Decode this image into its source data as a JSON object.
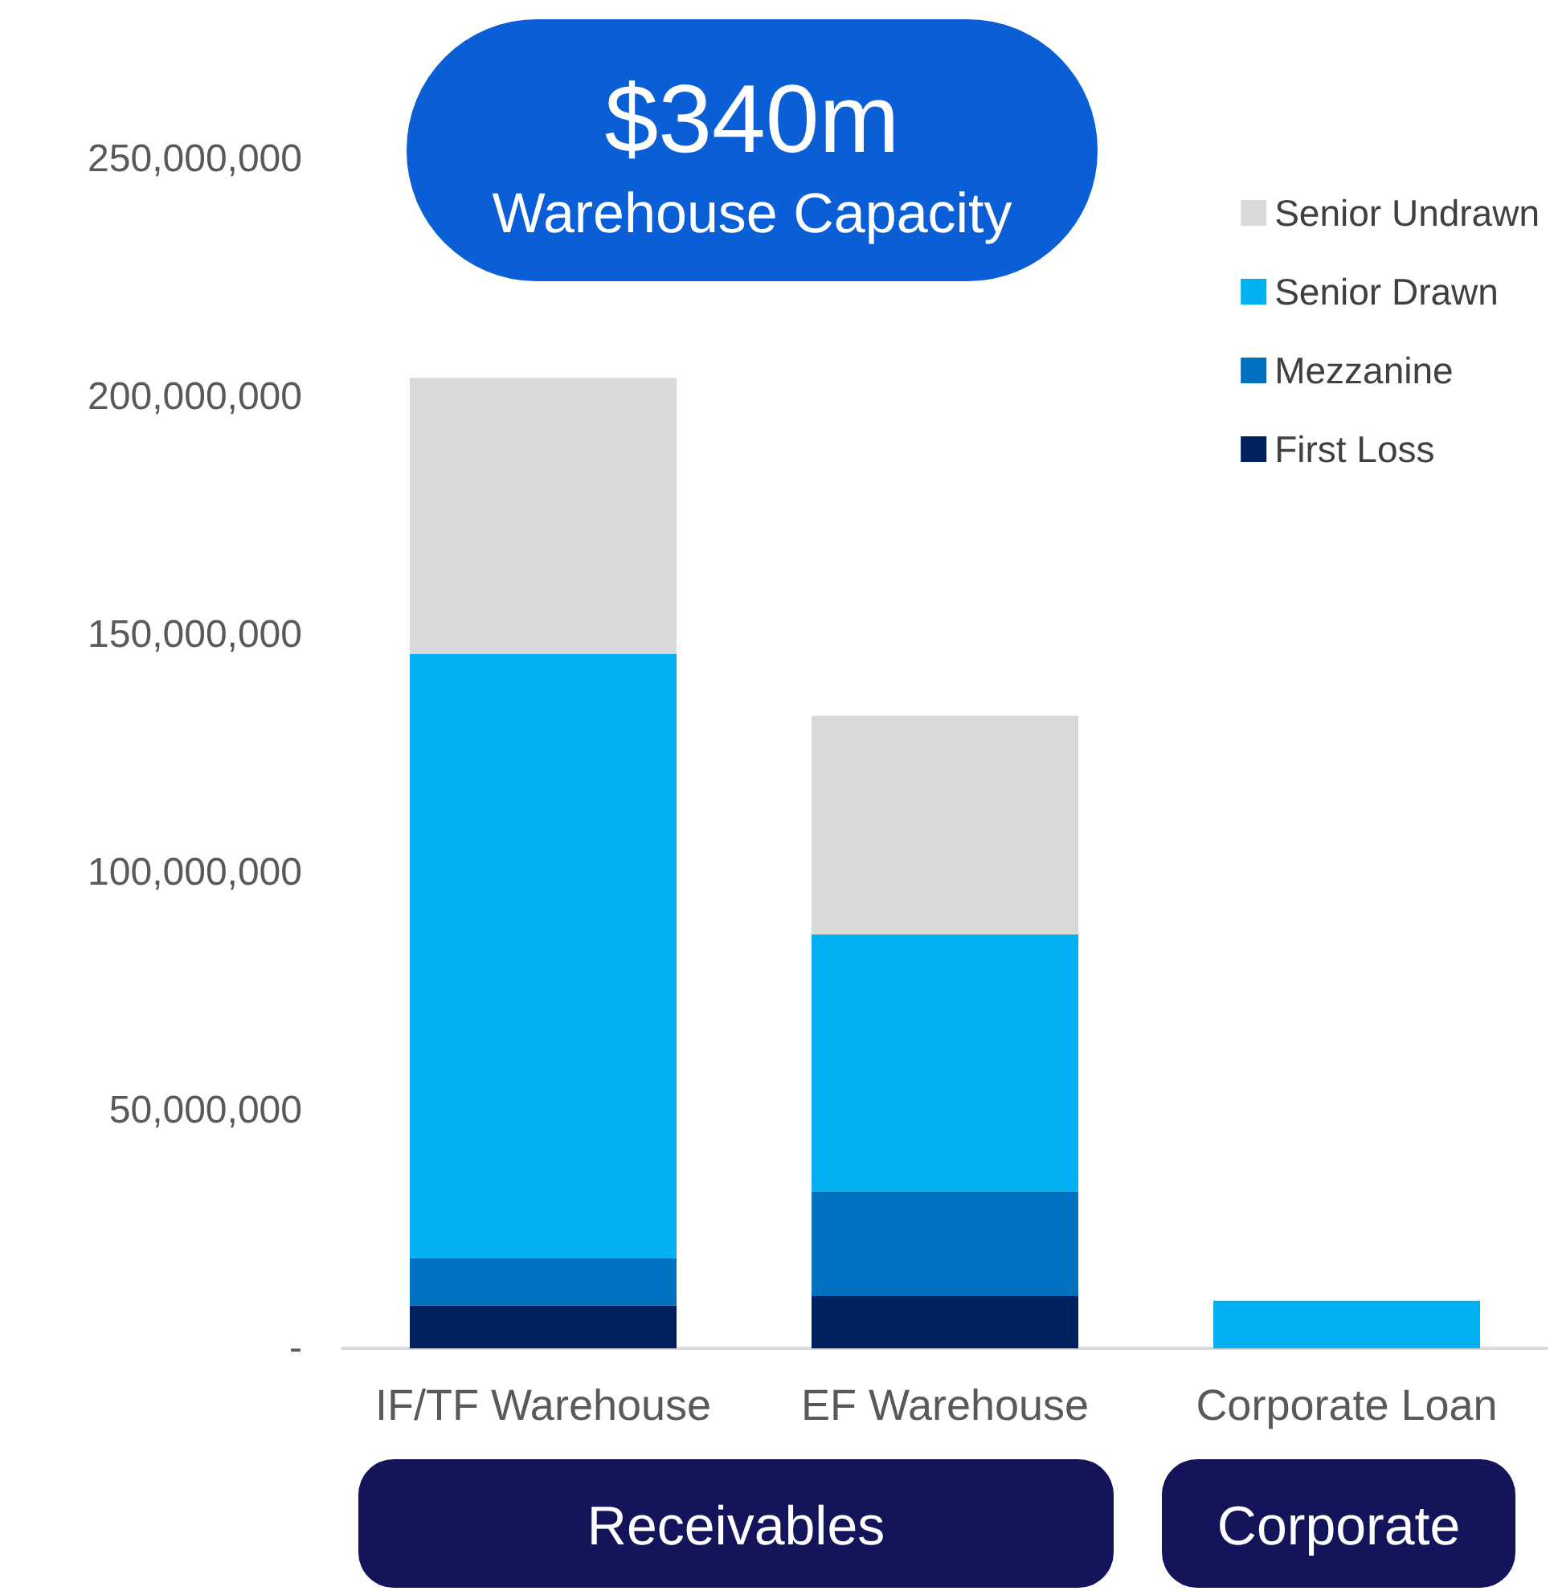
{
  "chart_data": {
    "type": "bar",
    "stacked": true,
    "title": "$340m",
    "subtitle": "Warehouse Capacity",
    "categories": [
      "IF/TF Warehouse",
      "EF Warehouse",
      "Corporate Loan"
    ],
    "series": [
      {
        "name": "First Loss",
        "color": "#002060",
        "values": [
          9000000,
          11000000,
          null
        ]
      },
      {
        "name": "Mezzanine",
        "color": "#0070c0",
        "values": [
          10000000,
          22000000,
          null
        ]
      },
      {
        "name": "Senior Drawn",
        "color": "#00b0f0",
        "values": [
          127000000,
          54000000,
          10000000
        ]
      },
      {
        "name": "Senior Undrawn",
        "color": "#d9d9d9",
        "values": [
          58000000,
          46000000,
          null
        ]
      }
    ],
    "ylim": [
      0,
      250000000
    ],
    "yticks": [
      {
        "value": 0,
        "label": "-"
      },
      {
        "value": 50000000,
        "label": "50,000,000"
      },
      {
        "value": 100000000,
        "label": "100,000,000"
      },
      {
        "value": 150000000,
        "label": "150,000,000"
      },
      {
        "value": 200000000,
        "label": "200,000,000"
      },
      {
        "value": 250000000,
        "label": "250,000,000"
      }
    ],
    "grid": false,
    "legend": "top right",
    "annotations": [
      "Receivables",
      "Corporate"
    ]
  }
}
